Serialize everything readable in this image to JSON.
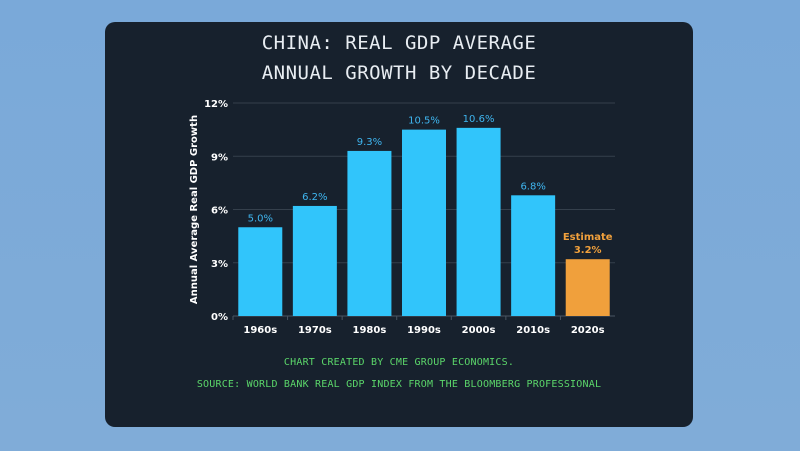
{
  "chart_data": {
    "type": "bar",
    "title": "CHINA: REAL GDP AVERAGE",
    "subtitle": "ANNUAL GROWTH BY DECADE",
    "categories": [
      "1960s",
      "1970s",
      "1980s",
      "1990s",
      "2000s",
      "2010s",
      "2020s"
    ],
    "values": [
      5.0,
      6.2,
      9.3,
      10.5,
      10.6,
      6.8,
      3.2
    ],
    "data_labels": [
      "5.0%",
      "6.2%",
      "9.3%",
      "10.5%",
      "10.6%",
      "6.8%",
      "3.2%"
    ],
    "estimate_label": "Estimate",
    "estimate_index": 6,
    "xlabel": "",
    "ylabel": "Annual Average Real GDP Growth",
    "ylim": [
      0,
      12
    ],
    "yticks": [
      0,
      3,
      6,
      9,
      12
    ],
    "ytick_labels": [
      "0%",
      "3%",
      "6%",
      "9%",
      "12%"
    ],
    "grid": true,
    "colors": {
      "actual": "#31c5fb",
      "estimate": "#f0a03c",
      "actual_label": "#3fb6f0",
      "estimate_label": "#f0a03c"
    }
  },
  "footer": {
    "credit": "CHART CREATED BY CME GROUP ECONOMICS.",
    "source": "SOURCE: WORLD BANK REAL GDP INDEX FROM THE BLOOMBERG PROFESSIONAL"
  }
}
